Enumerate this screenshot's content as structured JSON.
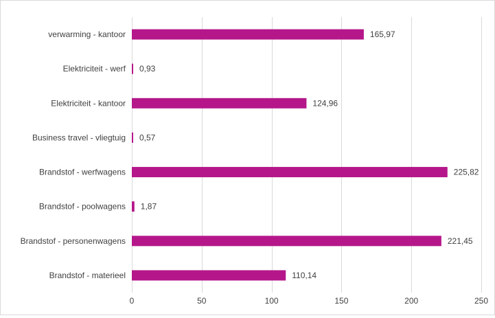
{
  "chart_data": {
    "type": "bar",
    "orientation": "horizontal",
    "categories": [
      "verwarming - kantoor",
      "Elektriciteit - werf",
      "Elektriciteit - kantoor",
      "Business travel - vliegtuig",
      "Brandstof - werfwagens",
      "Brandstof - poolwagens",
      "Brandstof - personenwagens",
      "Brandstof - materieel"
    ],
    "values": [
      165.97,
      0.93,
      124.96,
      0.57,
      225.82,
      1.87,
      221.45,
      110.14
    ],
    "value_labels": [
      "165,97",
      "0,93",
      "124,96",
      "0,57",
      "225,82",
      "1,87",
      "221,45",
      "110,14"
    ],
    "xlim": [
      0,
      250
    ],
    "xticks": [
      0,
      50,
      100,
      150,
      200,
      250
    ],
    "xtick_labels": [
      "0",
      "50",
      "100",
      "150",
      "200",
      "250"
    ],
    "title": "",
    "xlabel": "",
    "ylabel": "",
    "grid": "vertical",
    "legend": "none",
    "bar_color": "#b5178a",
    "grid_color": "#d9d9d9"
  }
}
